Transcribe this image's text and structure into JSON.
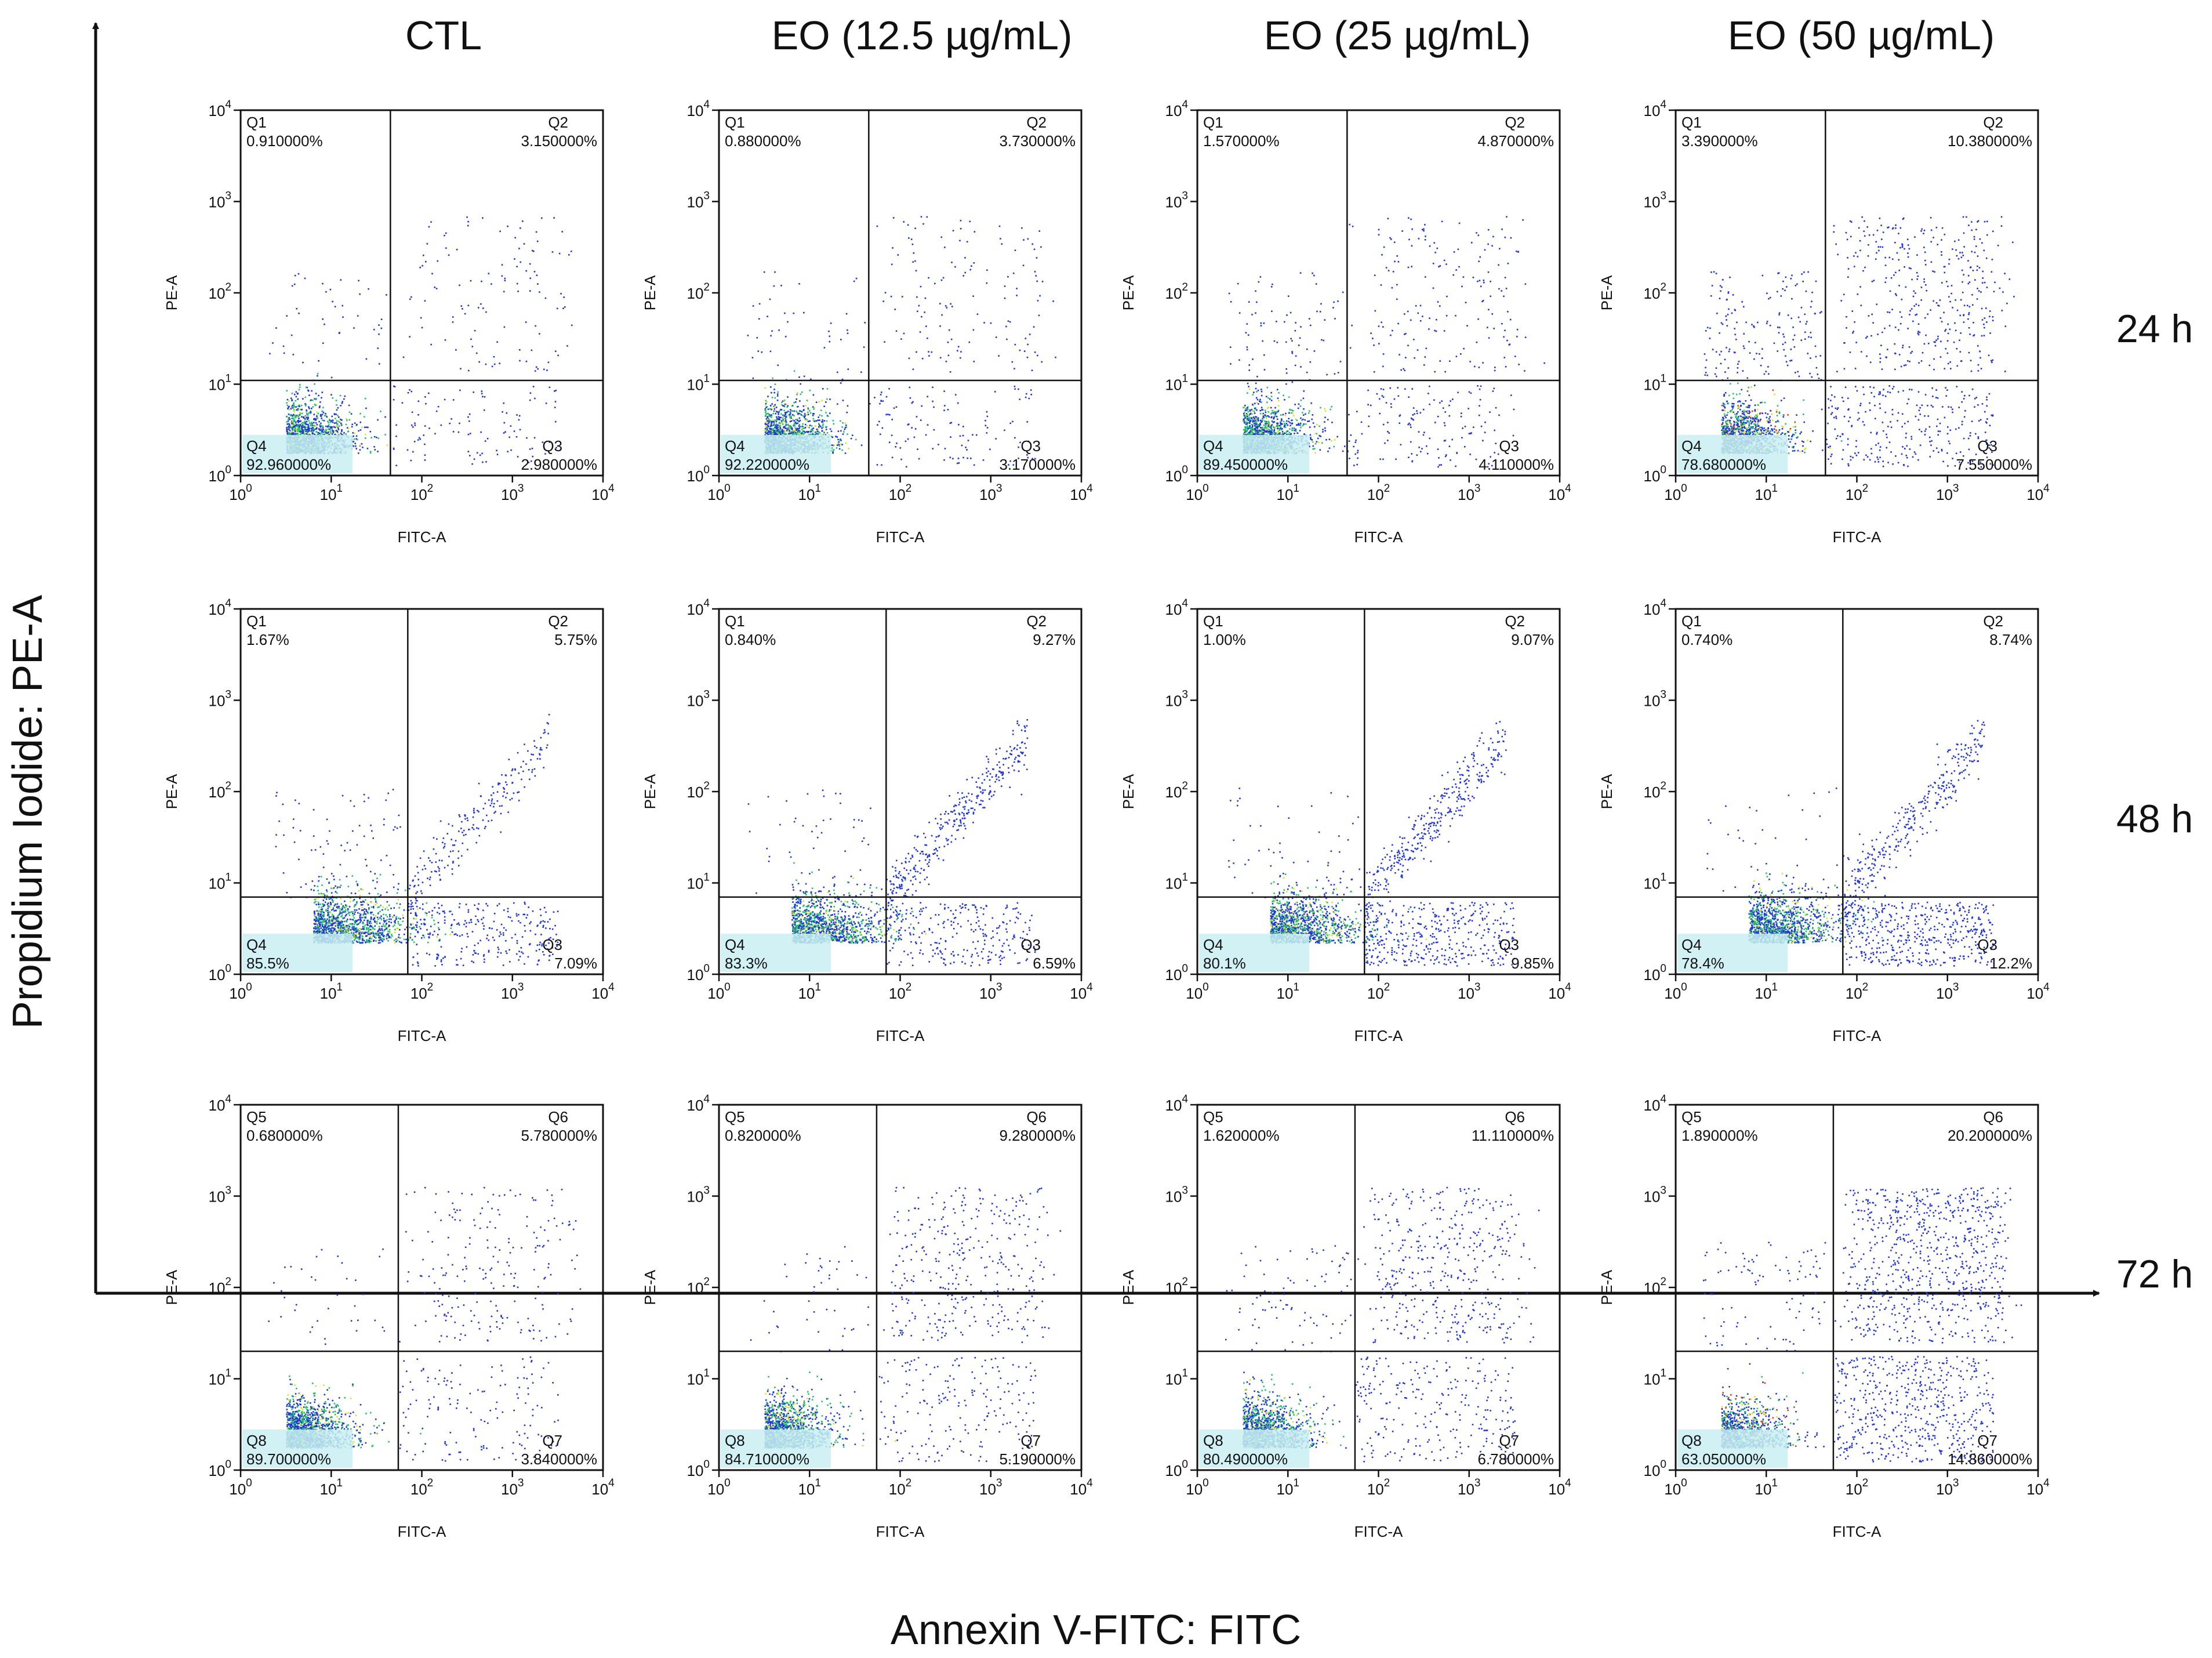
{
  "figure": {
    "y_axis_title": "Propidium Iodide: PE-A",
    "x_axis_title": "Annexin V-FITC: FITC"
  },
  "colors": {
    "axis": "#111111",
    "dot_blue": "#1f35d6",
    "dense_green": "#22c06a",
    "dense_yellow": "#d8e12a",
    "dense_red": "#e03a1a",
    "pale_band": "#c9eef3"
  },
  "chart_data": {
    "type": "scatter",
    "subtype": "flow-cytometry quadrant density plots",
    "columns": [
      "CTL",
      "EO (12.5 µg/mL)",
      "EO (25 µg/mL)",
      "EO (50 µg/mL)"
    ],
    "rows": [
      "24 h",
      "48 h",
      "72 h"
    ],
    "xlabel": "FITC-A",
    "ylabel": "PE-A",
    "x_scale": "log10",
    "y_scale": "log10",
    "xlim": [
      1,
      10000
    ],
    "ylim": [
      1,
      10000
    ],
    "x_ticks": [
      "10^0",
      "10^1",
      "10^2",
      "10^3",
      "10^4"
    ],
    "y_ticks": [
      "10^0",
      "10^1",
      "10^2",
      "10^3",
      "10^4"
    ],
    "panels": [
      {
        "row": "24 h",
        "column": "CTL",
        "gate_x": 45,
        "gate_y": 11,
        "quadrants": {
          "Q1": "0.910000%",
          "Q2": "3.150000%",
          "Q3": "2.980000%",
          "Q4": "92.960000%"
        }
      },
      {
        "row": "24 h",
        "column": "EO (12.5 µg/mL)",
        "gate_x": 45,
        "gate_y": 11,
        "quadrants": {
          "Q1": "0.880000%",
          "Q2": "3.730000%",
          "Q3": "3.170000%",
          "Q4": "92.220000%"
        }
      },
      {
        "row": "24 h",
        "column": "EO (25 µg/mL)",
        "gate_x": 45,
        "gate_y": 11,
        "quadrants": {
          "Q1": "1.570000%",
          "Q2": "4.870000%",
          "Q3": "4.110000%",
          "Q4": "89.450000%"
        }
      },
      {
        "row": "24 h",
        "column": "EO (50 µg/mL)",
        "gate_x": 45,
        "gate_y": 11,
        "quadrants": {
          "Q1": "3.390000%",
          "Q2": "10.380000%",
          "Q3": "7.550000%",
          "Q4": "78.680000%"
        }
      },
      {
        "row": "48 h",
        "column": "CTL",
        "gate_x": 70,
        "gate_y": 7,
        "quadrants": {
          "Q1": "1.67%",
          "Q2": "5.75%",
          "Q3": "7.09%",
          "Q4": "85.5%"
        }
      },
      {
        "row": "48 h",
        "column": "EO (12.5 µg/mL)",
        "gate_x": 70,
        "gate_y": 7,
        "quadrants": {
          "Q1": "0.840%",
          "Q2": "9.27%",
          "Q3": "6.59%",
          "Q4": "83.3%"
        }
      },
      {
        "row": "48 h",
        "column": "EO (25 µg/mL)",
        "gate_x": 70,
        "gate_y": 7,
        "quadrants": {
          "Q1": "1.00%",
          "Q2": "9.07%",
          "Q3": "9.85%",
          "Q4": "80.1%"
        }
      },
      {
        "row": "48 h",
        "column": "EO (50 µg/mL)",
        "gate_x": 70,
        "gate_y": 7,
        "quadrants": {
          "Q1": "0.740%",
          "Q2": "8.74%",
          "Q3": "12.2%",
          "Q4": "78.4%"
        }
      },
      {
        "row": "72 h",
        "column": "CTL",
        "gate_x": 55,
        "gate_y": 20,
        "quadrants": {
          "Q5": "0.680000%",
          "Q6": "5.780000%",
          "Q7": "3.840000%",
          "Q8": "89.700000%"
        }
      },
      {
        "row": "72 h",
        "column": "EO (12.5 µg/mL)",
        "gate_x": 55,
        "gate_y": 20,
        "quadrants": {
          "Q5": "0.820000%",
          "Q6": "9.280000%",
          "Q7": "5.190000%",
          "Q8": "84.710000%"
        }
      },
      {
        "row": "72 h",
        "column": "EO (25 µg/mL)",
        "gate_x": 55,
        "gate_y": 20,
        "quadrants": {
          "Q5": "1.620000%",
          "Q6": "11.110000%",
          "Q7": "6.780000%",
          "Q8": "80.490000%"
        }
      },
      {
        "row": "72 h",
        "column": "EO (50 µg/mL)",
        "gate_x": 55,
        "gate_y": 20,
        "quadrants": {
          "Q5": "1.890000%",
          "Q6": "20.200000%",
          "Q7": "14.860000%",
          "Q8": "63.050000%"
        }
      }
    ]
  }
}
